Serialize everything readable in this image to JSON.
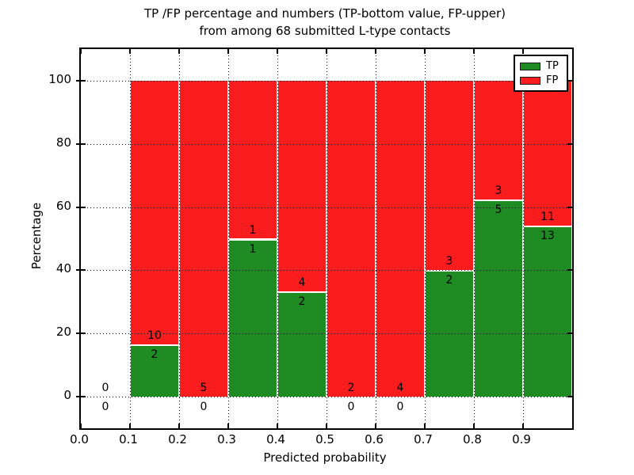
{
  "chart": {
    "title": "TP /FP percentage and numbers (TP-bottom value, FP-upper)\nfrom among 68 submitted L-type contacts",
    "xlabel": "Predicted probability",
    "ylabel": "Percentage"
  },
  "chart_data": {
    "type": "bar",
    "stacked": true,
    "normalized": "each bar scaled to 100%, green TP portion at bottom, red FP portion on top",
    "title": "TP /FP percentage and numbers (TP-bottom value, FP-upper) from among 68 submitted L-type contacts",
    "xlabel": "Predicted probability",
    "ylabel": "Percentage",
    "total_contacts": 68,
    "bins": [
      {
        "range": [
          0.0,
          0.1
        ],
        "tp": 0,
        "fp": 0
      },
      {
        "range": [
          0.1,
          0.2
        ],
        "tp": 2,
        "fp": 10
      },
      {
        "range": [
          0.2,
          0.3
        ],
        "tp": 0,
        "fp": 5
      },
      {
        "range": [
          0.3,
          0.4
        ],
        "tp": 1,
        "fp": 1
      },
      {
        "range": [
          0.4,
          0.5
        ],
        "tp": 2,
        "fp": 4
      },
      {
        "range": [
          0.5,
          0.6
        ],
        "tp": 0,
        "fp": 2
      },
      {
        "range": [
          0.6,
          0.7
        ],
        "tp": 0,
        "fp": 4
      },
      {
        "range": [
          0.7,
          0.8
        ],
        "tp": 2,
        "fp": 3
      },
      {
        "range": [
          0.8,
          0.9
        ],
        "tp": 5,
        "fp": 3
      },
      {
        "range": [
          0.9,
          1.0
        ],
        "tp": 13,
        "fp": 11
      }
    ],
    "series": [
      {
        "name": "TP",
        "color": "#1e8c22"
      },
      {
        "name": "FP",
        "color": "#fb1d1d"
      }
    ],
    "x_ticks": [
      "0.0",
      "0.1",
      "0.2",
      "0.3",
      "0.4",
      "0.5",
      "0.6",
      "0.7",
      "0.8",
      "0.9"
    ],
    "y_ticks": [
      0,
      20,
      40,
      60,
      80,
      100
    ],
    "xlim": [
      0,
      1
    ],
    "ylim": [
      -10,
      110
    ],
    "grid": "dotted, horizontal at y ticks and vertical at x ticks, drawn over bars",
    "legend_position": "upper right"
  }
}
